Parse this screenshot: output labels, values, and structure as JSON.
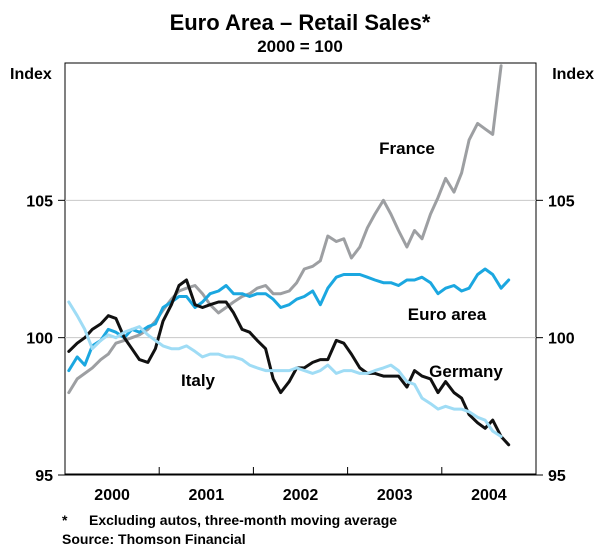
{
  "chart_data": {
    "type": "line",
    "title": "Euro Area – Retail Sales*",
    "subtitle": "2000 = 100",
    "ylabel_left": "Index",
    "ylabel_right": "Index",
    "ylim": [
      95,
      110
    ],
    "y_ticks": [
      95,
      100,
      105
    ],
    "x_range": [
      1999.5,
      2004.5
    ],
    "x_ticks": [
      {
        "label": "2000",
        "value": 2000.0
      },
      {
        "label": "2001",
        "value": 2001.0
      },
      {
        "label": "2002",
        "value": 2002.0
      },
      {
        "label": "2003",
        "value": 2003.0
      },
      {
        "label": "2004",
        "value": 2004.0
      }
    ],
    "series": [
      {
        "name": "France",
        "color": "#9d9fa2",
        "points": [
          [
            1999.54,
            98.0
          ],
          [
            1999.63,
            98.5
          ],
          [
            1999.71,
            98.7
          ],
          [
            1999.79,
            98.9
          ],
          [
            1999.88,
            99.2
          ],
          [
            1999.96,
            99.4
          ],
          [
            2000.04,
            99.8
          ],
          [
            2000.13,
            99.9
          ],
          [
            2000.21,
            100.0
          ],
          [
            2000.29,
            100.1
          ],
          [
            2000.38,
            100.3
          ],
          [
            2000.46,
            100.6
          ],
          [
            2000.54,
            101.0
          ],
          [
            2000.63,
            101.4
          ],
          [
            2000.71,
            101.7
          ],
          [
            2000.79,
            101.8
          ],
          [
            2000.88,
            101.9
          ],
          [
            2000.96,
            101.6
          ],
          [
            2001.04,
            101.2
          ],
          [
            2001.13,
            100.9
          ],
          [
            2001.21,
            101.1
          ],
          [
            2001.29,
            101.3
          ],
          [
            2001.38,
            101.5
          ],
          [
            2001.46,
            101.6
          ],
          [
            2001.54,
            101.8
          ],
          [
            2001.63,
            101.9
          ],
          [
            2001.71,
            101.6
          ],
          [
            2001.79,
            101.6
          ],
          [
            2001.88,
            101.7
          ],
          [
            2001.96,
            102.0
          ],
          [
            2002.04,
            102.5
          ],
          [
            2002.13,
            102.6
          ],
          [
            2002.21,
            102.8
          ],
          [
            2002.29,
            103.7
          ],
          [
            2002.38,
            103.5
          ],
          [
            2002.46,
            103.6
          ],
          [
            2002.54,
            102.9
          ],
          [
            2002.63,
            103.3
          ],
          [
            2002.71,
            104.0
          ],
          [
            2002.79,
            104.5
          ],
          [
            2002.88,
            105.0
          ],
          [
            2002.96,
            104.5
          ],
          [
            2003.04,
            103.9
          ],
          [
            2003.13,
            103.3
          ],
          [
            2003.21,
            103.9
          ],
          [
            2003.29,
            103.6
          ],
          [
            2003.38,
            104.5
          ],
          [
            2003.46,
            105.1
          ],
          [
            2003.54,
            105.8
          ],
          [
            2003.63,
            105.3
          ],
          [
            2003.71,
            106.0
          ],
          [
            2003.79,
            107.2
          ],
          [
            2003.88,
            107.8
          ],
          [
            2003.96,
            107.6
          ],
          [
            2004.04,
            107.4
          ],
          [
            2004.13,
            109.9
          ]
        ]
      },
      {
        "name": "Euro area",
        "color": "#1ba7e0",
        "points": [
          [
            1999.54,
            98.8
          ],
          [
            1999.63,
            99.3
          ],
          [
            1999.71,
            99.0
          ],
          [
            1999.79,
            99.7
          ],
          [
            1999.88,
            99.9
          ],
          [
            1999.96,
            100.3
          ],
          [
            2000.04,
            100.2
          ],
          [
            2000.13,
            100.0
          ],
          [
            2000.21,
            100.3
          ],
          [
            2000.29,
            100.2
          ],
          [
            2000.38,
            100.4
          ],
          [
            2000.46,
            100.5
          ],
          [
            2000.54,
            101.1
          ],
          [
            2000.63,
            101.3
          ],
          [
            2000.71,
            101.5
          ],
          [
            2000.79,
            101.5
          ],
          [
            2000.88,
            101.1
          ],
          [
            2000.96,
            101.3
          ],
          [
            2001.04,
            101.6
          ],
          [
            2001.13,
            101.7
          ],
          [
            2001.21,
            101.9
          ],
          [
            2001.29,
            101.6
          ],
          [
            2001.38,
            101.6
          ],
          [
            2001.46,
            101.5
          ],
          [
            2001.54,
            101.6
          ],
          [
            2001.63,
            101.6
          ],
          [
            2001.71,
            101.4
          ],
          [
            2001.79,
            101.1
          ],
          [
            2001.88,
            101.2
          ],
          [
            2001.96,
            101.4
          ],
          [
            2002.04,
            101.5
          ],
          [
            2002.13,
            101.7
          ],
          [
            2002.21,
            101.2
          ],
          [
            2002.29,
            101.8
          ],
          [
            2002.38,
            102.2
          ],
          [
            2002.46,
            102.3
          ],
          [
            2002.54,
            102.3
          ],
          [
            2002.63,
            102.3
          ],
          [
            2002.71,
            102.2
          ],
          [
            2002.79,
            102.1
          ],
          [
            2002.88,
            102.0
          ],
          [
            2002.96,
            102.0
          ],
          [
            2003.04,
            101.9
          ],
          [
            2003.13,
            102.1
          ],
          [
            2003.21,
            102.1
          ],
          [
            2003.29,
            102.2
          ],
          [
            2003.38,
            102.0
          ],
          [
            2003.46,
            101.6
          ],
          [
            2003.54,
            101.8
          ],
          [
            2003.63,
            101.9
          ],
          [
            2003.71,
            101.7
          ],
          [
            2003.79,
            101.8
          ],
          [
            2003.88,
            102.3
          ],
          [
            2003.96,
            102.5
          ],
          [
            2004.04,
            102.3
          ],
          [
            2004.13,
            101.8
          ],
          [
            2004.21,
            102.1
          ]
        ]
      },
      {
        "name": "Germany",
        "color": "#111111",
        "points": [
          [
            1999.54,
            99.5
          ],
          [
            1999.63,
            99.8
          ],
          [
            1999.71,
            100.0
          ],
          [
            1999.79,
            100.3
          ],
          [
            1999.88,
            100.5
          ],
          [
            1999.96,
            100.8
          ],
          [
            2000.04,
            100.7
          ],
          [
            2000.13,
            100.0
          ],
          [
            2000.21,
            99.6
          ],
          [
            2000.29,
            99.2
          ],
          [
            2000.38,
            99.1
          ],
          [
            2000.46,
            99.6
          ],
          [
            2000.54,
            100.6
          ],
          [
            2000.63,
            101.2
          ],
          [
            2000.71,
            101.9
          ],
          [
            2000.79,
            102.1
          ],
          [
            2000.88,
            101.2
          ],
          [
            2000.96,
            101.1
          ],
          [
            2001.04,
            101.2
          ],
          [
            2001.13,
            101.3
          ],
          [
            2001.21,
            101.3
          ],
          [
            2001.29,
            100.9
          ],
          [
            2001.38,
            100.3
          ],
          [
            2001.46,
            100.2
          ],
          [
            2001.54,
            99.9
          ],
          [
            2001.63,
            99.6
          ],
          [
            2001.71,
            98.5
          ],
          [
            2001.79,
            98.0
          ],
          [
            2001.88,
            98.4
          ],
          [
            2001.96,
            98.9
          ],
          [
            2002.04,
            98.9
          ],
          [
            2002.13,
            99.1
          ],
          [
            2002.21,
            99.2
          ],
          [
            2002.29,
            99.2
          ],
          [
            2002.38,
            99.9
          ],
          [
            2002.46,
            99.8
          ],
          [
            2002.54,
            99.4
          ],
          [
            2002.63,
            98.9
          ],
          [
            2002.71,
            98.7
          ],
          [
            2002.79,
            98.7
          ],
          [
            2002.88,
            98.6
          ],
          [
            2002.96,
            98.6
          ],
          [
            2003.04,
            98.6
          ],
          [
            2003.13,
            98.2
          ],
          [
            2003.21,
            98.8
          ],
          [
            2003.29,
            98.6
          ],
          [
            2003.38,
            98.5
          ],
          [
            2003.46,
            98.0
          ],
          [
            2003.54,
            98.4
          ],
          [
            2003.63,
            98.0
          ],
          [
            2003.71,
            97.8
          ],
          [
            2003.79,
            97.2
          ],
          [
            2003.88,
            96.9
          ],
          [
            2003.96,
            96.7
          ],
          [
            2004.04,
            97.0
          ],
          [
            2004.13,
            96.4
          ],
          [
            2004.21,
            96.1
          ]
        ]
      },
      {
        "name": "Italy",
        "color": "#9fdcf5",
        "points": [
          [
            1999.54,
            101.3
          ],
          [
            1999.63,
            100.8
          ],
          [
            1999.71,
            100.3
          ],
          [
            1999.79,
            99.6
          ],
          [
            1999.88,
            99.9
          ],
          [
            1999.96,
            100.1
          ],
          [
            2000.04,
            100.0
          ],
          [
            2000.13,
            100.2
          ],
          [
            2000.21,
            100.3
          ],
          [
            2000.29,
            100.4
          ],
          [
            2000.38,
            100.1
          ],
          [
            2000.46,
            99.9
          ],
          [
            2000.54,
            99.7
          ],
          [
            2000.63,
            99.6
          ],
          [
            2000.71,
            99.6
          ],
          [
            2000.79,
            99.7
          ],
          [
            2000.88,
            99.5
          ],
          [
            2000.96,
            99.3
          ],
          [
            2001.04,
            99.4
          ],
          [
            2001.13,
            99.4
          ],
          [
            2001.21,
            99.3
          ],
          [
            2001.29,
            99.3
          ],
          [
            2001.38,
            99.2
          ],
          [
            2001.46,
            99.0
          ],
          [
            2001.54,
            98.9
          ],
          [
            2001.63,
            98.8
          ],
          [
            2001.71,
            98.8
          ],
          [
            2001.79,
            98.8
          ],
          [
            2001.88,
            98.8
          ],
          [
            2001.96,
            98.9
          ],
          [
            2002.04,
            98.8
          ],
          [
            2002.13,
            98.7
          ],
          [
            2002.21,
            98.8
          ],
          [
            2002.29,
            99.0
          ],
          [
            2002.38,
            98.7
          ],
          [
            2002.46,
            98.8
          ],
          [
            2002.54,
            98.8
          ],
          [
            2002.63,
            98.7
          ],
          [
            2002.71,
            98.7
          ],
          [
            2002.79,
            98.8
          ],
          [
            2002.88,
            98.9
          ],
          [
            2002.96,
            99.0
          ],
          [
            2003.04,
            98.8
          ],
          [
            2003.13,
            98.4
          ],
          [
            2003.21,
            98.3
          ],
          [
            2003.29,
            97.8
          ],
          [
            2003.38,
            97.6
          ],
          [
            2003.46,
            97.4
          ],
          [
            2003.54,
            97.5
          ],
          [
            2003.63,
            97.4
          ],
          [
            2003.71,
            97.4
          ],
          [
            2003.79,
            97.3
          ],
          [
            2003.88,
            97.1
          ],
          [
            2003.96,
            97.0
          ],
          [
            2004.04,
            96.6
          ],
          [
            2004.13,
            96.4
          ]
        ]
      }
    ],
    "series_labels": [
      {
        "name": "France",
        "text": "France"
      },
      {
        "name": "Euro area",
        "text": "Euro area"
      },
      {
        "name": "Germany",
        "text": "Germany"
      },
      {
        "name": "Italy",
        "text": "Italy"
      }
    ],
    "footnote_marker": "*",
    "footnote_text": "Excluding autos, three-month moving average",
    "source": "Source: Thomson Financial"
  }
}
